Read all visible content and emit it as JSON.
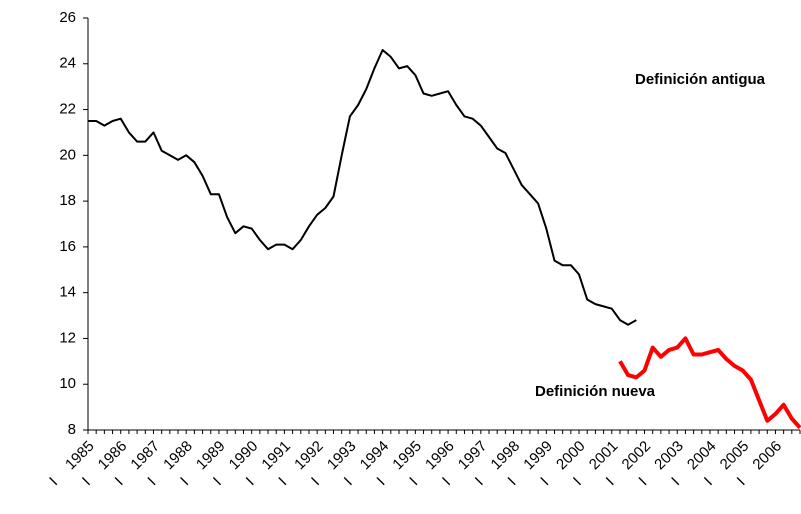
{
  "chart_data": {
    "type": "line",
    "categories": [
      "I 1985",
      null,
      null,
      null,
      "I 1986",
      null,
      null,
      null,
      "I 1987",
      null,
      null,
      null,
      "I 1988",
      null,
      null,
      null,
      "I 1989",
      null,
      null,
      null,
      "I 1990",
      null,
      null,
      null,
      "I 1991",
      null,
      null,
      null,
      "I 1992",
      null,
      null,
      null,
      "I 1993",
      null,
      null,
      null,
      "I 1994",
      null,
      null,
      null,
      "I 1995",
      null,
      null,
      null,
      "I 1996",
      null,
      null,
      null,
      "I 1997",
      null,
      null,
      null,
      "I 1998",
      null,
      null,
      null,
      "I 1999",
      null,
      null,
      null,
      "I 2000",
      null,
      null,
      null,
      "I 2001",
      null,
      null,
      null,
      "I 2002",
      null,
      null,
      null,
      "I 2003",
      null,
      null,
      null,
      "I 2004",
      null,
      null,
      null,
      "I 2005",
      null,
      null,
      null,
      "I 2006",
      null,
      null,
      null
    ],
    "series": [
      {
        "name": "Definición antigua",
        "color": "#000000",
        "values": [
          21.5,
          21.5,
          21.3,
          21.5,
          21.6,
          21.0,
          20.6,
          20.6,
          21.0,
          20.2,
          20.0,
          19.8,
          20.0,
          19.7,
          19.1,
          18.3,
          18.3,
          17.3,
          16.6,
          16.9,
          16.8,
          16.3,
          15.9,
          16.1,
          16.1,
          15.9,
          16.3,
          16.9,
          17.4,
          17.7,
          18.2,
          20.0,
          21.7,
          22.2,
          22.9,
          23.8,
          24.6,
          24.3,
          23.8,
          23.9,
          23.5,
          22.7,
          22.6,
          22.7,
          22.8,
          22.2,
          21.7,
          21.6,
          21.3,
          20.8,
          20.3,
          20.1,
          19.4,
          18.7,
          18.3,
          17.9,
          16.8,
          15.4,
          15.2,
          15.2,
          14.8,
          13.7,
          13.5,
          13.4,
          13.3,
          12.8,
          12.6,
          12.8,
          null,
          null,
          null,
          null,
          null,
          null,
          null,
          null,
          null,
          null,
          null,
          null,
          null,
          null,
          null,
          null,
          null,
          null,
          null,
          null
        ]
      },
      {
        "name": "Definición nueva",
        "color": "#ff0000",
        "values": [
          null,
          null,
          null,
          null,
          null,
          null,
          null,
          null,
          null,
          null,
          null,
          null,
          null,
          null,
          null,
          null,
          null,
          null,
          null,
          null,
          null,
          null,
          null,
          null,
          null,
          null,
          null,
          null,
          null,
          null,
          null,
          null,
          null,
          null,
          null,
          null,
          null,
          null,
          null,
          null,
          null,
          null,
          null,
          null,
          null,
          null,
          null,
          null,
          null,
          null,
          null,
          null,
          null,
          null,
          null,
          null,
          null,
          null,
          null,
          null,
          null,
          null,
          null,
          null,
          null,
          11.0,
          10.4,
          10.3,
          10.6,
          11.6,
          11.2,
          11.5,
          11.6,
          12.0,
          11.3,
          11.3,
          11.4,
          11.5,
          11.1,
          10.8,
          10.6,
          10.2,
          9.3,
          8.4,
          8.7,
          9.1,
          8.5,
          8.1
        ]
      }
    ],
    "ylim": [
      8,
      26
    ],
    "yticks": [
      8,
      10,
      12,
      14,
      16,
      18,
      20,
      22,
      24,
      26
    ]
  }
}
